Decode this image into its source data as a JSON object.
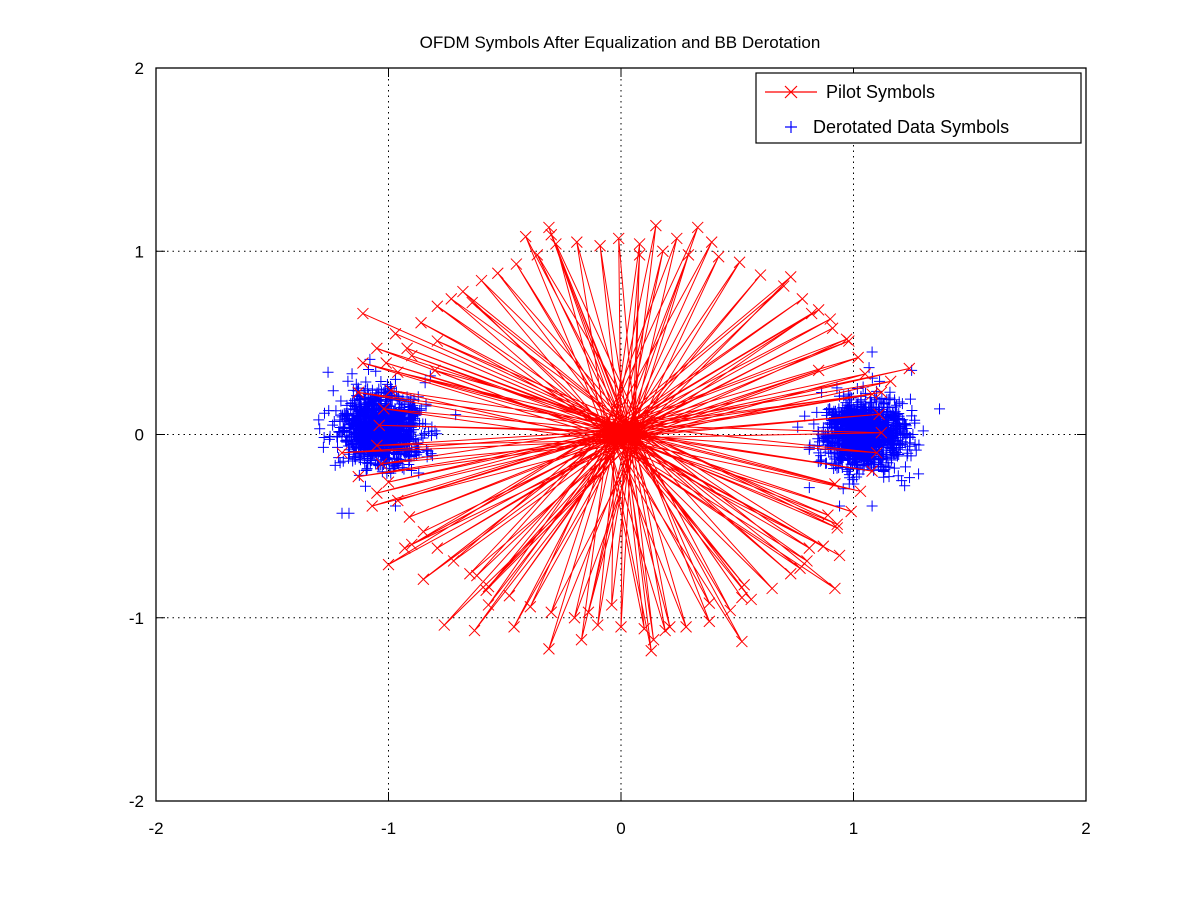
{
  "chart_data": {
    "type": "scatter",
    "title": "OFDM Symbols After Equalization and BB Derotation",
    "xlabel": "",
    "ylabel": "",
    "xlim": [
      -2,
      2
    ],
    "ylim": [
      -2,
      2
    ],
    "xticks": [
      -2,
      -1,
      0,
      1,
      2
    ],
    "yticks": [
      -2,
      -1,
      0,
      1,
      2
    ],
    "x_tick_labels": [
      "-2",
      "-1",
      "0",
      "1",
      "2"
    ],
    "y_tick_labels": [
      "-2",
      "-1",
      "0",
      "1",
      "2"
    ],
    "grid": true,
    "grid_style": "dotted",
    "legend_position": "top-right",
    "series": [
      {
        "name": "Pilot Symbols",
        "kind": "line-with-x-markers",
        "color": "#ff0000",
        "marker": "x",
        "points": [
          [
            -1.11,
            0.66
          ],
          [
            0.03,
            0.02
          ],
          [
            -0.92,
            0.47
          ],
          [
            -0.05,
            0.05
          ],
          [
            -0.97,
            0.55
          ],
          [
            0.12,
            -0.04
          ],
          [
            -0.86,
            0.61
          ],
          [
            0.02,
            -0.01
          ],
          [
            -0.79,
            0.7
          ],
          [
            -0.08,
            0.02
          ],
          [
            -0.73,
            0.74
          ],
          [
            0.05,
            0.03
          ],
          [
            -0.68,
            0.78
          ],
          [
            -0.02,
            -0.04
          ],
          [
            -0.6,
            0.84
          ],
          [
            0.07,
            0.01
          ],
          [
            -0.53,
            0.88
          ],
          [
            -0.04,
            0.06
          ],
          [
            -0.45,
            0.93
          ],
          [
            0.02,
            -0.02
          ],
          [
            -0.36,
            0.98
          ],
          [
            0.09,
            0.03
          ],
          [
            -0.28,
            1.04
          ],
          [
            -0.06,
            0.0
          ],
          [
            -0.19,
            1.05
          ],
          [
            0.03,
            0.05
          ],
          [
            -0.09,
            1.03
          ],
          [
            0.0,
            -0.03
          ],
          [
            -0.01,
            1.07
          ],
          [
            0.06,
            0.02
          ],
          [
            0.08,
            1.04
          ],
          [
            -0.03,
            0.04
          ],
          [
            0.15,
            1.14
          ],
          [
            0.04,
            -0.02
          ],
          [
            0.24,
            1.07
          ],
          [
            -0.07,
            0.03
          ],
          [
            0.33,
            1.13
          ],
          [
            0.02,
            0.0
          ],
          [
            0.42,
            0.97
          ],
          [
            0.08,
            0.04
          ],
          [
            0.51,
            0.94
          ],
          [
            -0.02,
            -0.05
          ],
          [
            0.6,
            0.87
          ],
          [
            0.05,
            0.02
          ],
          [
            0.7,
            0.81
          ],
          [
            -0.05,
            0.01
          ],
          [
            0.78,
            0.74
          ],
          [
            0.03,
            0.06
          ],
          [
            0.85,
            0.68
          ],
          [
            0.0,
            -0.01
          ],
          [
            0.91,
            0.58
          ],
          [
            0.07,
            0.03
          ],
          [
            0.98,
            0.51
          ],
          [
            -0.04,
            0.02
          ],
          [
            1.02,
            0.42
          ],
          [
            0.04,
            -0.03
          ],
          [
            1.05,
            0.33
          ],
          [
            -0.01,
            0.04
          ],
          [
            1.08,
            0.22
          ],
          [
            0.06,
            0.0
          ],
          [
            1.11,
            0.11
          ],
          [
            -0.03,
            -0.02
          ],
          [
            1.12,
            0.01
          ],
          [
            0.02,
            0.05
          ],
          [
            1.1,
            -0.1
          ],
          [
            0.09,
            -0.01
          ],
          [
            1.08,
            -0.2
          ],
          [
            -0.06,
            0.03
          ],
          [
            1.03,
            -0.31
          ],
          [
            0.03,
            -0.04
          ],
          [
            0.99,
            -0.42
          ],
          [
            -0.02,
            0.01
          ],
          [
            0.93,
            -0.51
          ],
          [
            0.05,
            0.04
          ],
          [
            0.87,
            -0.61
          ],
          [
            -0.04,
            -0.03
          ],
          [
            0.8,
            -0.69
          ],
          [
            0.01,
            0.02
          ],
          [
            0.73,
            -0.76
          ],
          [
            0.07,
            -0.02
          ],
          [
            0.65,
            -0.84
          ],
          [
            -0.05,
            0.04
          ],
          [
            0.56,
            -0.9
          ],
          [
            0.02,
            0.0
          ],
          [
            0.47,
            -0.96
          ],
          [
            0.06,
            0.03
          ],
          [
            0.38,
            -1.02
          ],
          [
            -0.03,
            -0.05
          ],
          [
            0.28,
            -1.05
          ],
          [
            0.04,
            0.01
          ],
          [
            0.19,
            -1.07
          ],
          [
            -0.07,
            0.02
          ],
          [
            0.1,
            -1.06
          ],
          [
            0.01,
            -0.02
          ],
          [
            0.0,
            -1.05
          ],
          [
            0.05,
            0.05
          ],
          [
            -0.1,
            -1.04
          ],
          [
            -0.02,
            0.0
          ],
          [
            -0.2,
            -1.0
          ],
          [
            0.08,
            -0.03
          ],
          [
            -0.3,
            -0.97
          ],
          [
            -0.04,
            0.03
          ],
          [
            -0.39,
            -0.94
          ],
          [
            0.03,
            0.02
          ],
          [
            -0.48,
            -0.88
          ],
          [
            -0.01,
            -0.04
          ],
          [
            -0.57,
            -0.83
          ],
          [
            0.06,
            0.01
          ],
          [
            -0.65,
            -0.76
          ],
          [
            -0.05,
            0.05
          ],
          [
            -0.72,
            -0.69
          ],
          [
            0.02,
            -0.01
          ],
          [
            -0.79,
            -0.62
          ],
          [
            0.07,
            0.04
          ],
          [
            -0.85,
            -0.53
          ],
          [
            -0.03,
            -0.02
          ],
          [
            -0.91,
            -0.45
          ],
          [
            0.04,
            0.03
          ],
          [
            -0.96,
            -0.36
          ],
          [
            -0.06,
            0.0
          ],
          [
            -1.0,
            -0.26
          ],
          [
            0.01,
            0.04
          ],
          [
            -1.03,
            -0.16
          ],
          [
            0.05,
            -0.03
          ],
          [
            -1.05,
            -0.06
          ],
          [
            -0.02,
            0.02
          ],
          [
            -1.04,
            0.05
          ],
          [
            0.08,
            0.01
          ],
          [
            -1.02,
            0.14
          ],
          [
            -0.04,
            -0.04
          ],
          [
            -0.99,
            0.24
          ],
          [
            0.02,
            0.05
          ],
          [
            -0.96,
            0.34
          ],
          [
            0.06,
            -0.02
          ],
          [
            -0.9,
            0.43
          ],
          [
            -0.01,
            0.03
          ],
          [
            0.18,
            1.0
          ],
          [
            0.02,
            0.01
          ],
          [
            -0.3,
            1.09
          ],
          [
            0.05,
            -0.02
          ],
          [
            0.82,
            0.66
          ],
          [
            -0.03,
            0.02
          ],
          [
            0.9,
            0.63
          ],
          [
            0.06,
            0.04
          ],
          [
            1.24,
            0.36
          ],
          [
            -0.04,
            -0.01
          ],
          [
            1.12,
            0.23
          ],
          [
            0.03,
            0.03
          ],
          [
            0.89,
            -0.44
          ],
          [
            -0.02,
            0.0
          ],
          [
            0.93,
            -0.49
          ],
          [
            0.08,
            0.02
          ],
          [
            0.92,
            -0.84
          ],
          [
            -0.05,
            -0.03
          ],
          [
            0.77,
            -0.73
          ],
          [
            0.01,
            0.04
          ],
          [
            0.52,
            -0.89
          ],
          [
            0.04,
            -0.01
          ],
          [
            0.52,
            -1.13
          ],
          [
            -0.06,
            0.02
          ],
          [
            0.13,
            -1.18
          ],
          [
            0.02,
            -0.03
          ],
          [
            -0.14,
            -0.97
          ],
          [
            0.07,
            0.03
          ],
          [
            -0.31,
            -1.17
          ],
          [
            -0.03,
            0.01
          ],
          [
            -0.58,
            -0.85
          ],
          [
            0.05,
            -0.04
          ],
          [
            -0.76,
            -1.04
          ],
          [
            -0.01,
            0.02
          ],
          [
            -0.63,
            -1.07
          ],
          [
            0.03,
            0.0
          ],
          [
            -1.0,
            -0.71
          ],
          [
            -0.04,
            0.05
          ],
          [
            -0.9,
            -0.6
          ],
          [
            0.06,
            -0.02
          ],
          [
            -1.07,
            -0.39
          ],
          [
            0.0,
            0.03
          ],
          [
            -1.05,
            -0.32
          ],
          [
            0.05,
            0.01
          ],
          [
            -1.11,
            0.39
          ],
          [
            -0.02,
            -0.03
          ],
          [
            -1.05,
            0.47
          ],
          [
            0.04,
            0.02
          ],
          [
            -0.79,
            0.51
          ],
          [
            0.08,
            0.04
          ],
          [
            -0.8,
            0.35
          ],
          [
            -0.06,
            -0.01
          ],
          [
            -0.41,
            1.08
          ],
          [
            0.03,
            0.02
          ],
          [
            -0.31,
            1.13
          ],
          [
            0.01,
            -0.02
          ],
          [
            0.39,
            1.05
          ],
          [
            -0.05,
            0.03
          ],
          [
            0.73,
            0.86
          ],
          [
            0.07,
            0.0
          ],
          [
            0.97,
            0.52
          ],
          [
            -0.02,
            0.04
          ],
          [
            1.16,
            0.29
          ],
          [
            0.03,
            -0.03
          ],
          [
            0.94,
            -0.66
          ],
          [
            -0.04,
            0.01
          ],
          [
            0.81,
            -0.62
          ],
          [
            0.06,
            0.02
          ],
          [
            0.38,
            -0.92
          ],
          [
            0.0,
            -0.04
          ],
          [
            0.21,
            -1.05
          ],
          [
            0.05,
            0.03
          ],
          [
            -0.04,
            -0.93
          ],
          [
            -0.03,
            0.0
          ],
          [
            -0.46,
            -1.05
          ],
          [
            0.02,
            0.02
          ],
          [
            -0.57,
            -0.93
          ],
          [
            -0.07,
            -0.02
          ],
          [
            -0.85,
            -0.79
          ],
          [
            0.04,
            0.04
          ],
          [
            -0.93,
            -0.62
          ],
          [
            -0.01,
            0.01
          ],
          [
            -1.2,
            -0.1
          ],
          [
            0.06,
            -0.03
          ],
          [
            -1.01,
            0.39
          ],
          [
            -0.04,
            0.02
          ],
          [
            -0.64,
            0.72
          ],
          [
            0.02,
            0.05
          ],
          [
            0.08,
            0.98
          ],
          [
            0.05,
            0.0
          ],
          [
            0.29,
            0.98
          ],
          [
            -0.02,
            -0.04
          ],
          [
            0.85,
            0.35
          ],
          [
            0.07,
            0.02
          ],
          [
            0.92,
            -0.27
          ],
          [
            -0.03,
            0.03
          ],
          [
            0.53,
            -0.82
          ],
          [
            0.01,
            0.0
          ],
          [
            0.14,
            -1.12
          ],
          [
            0.04,
            -0.02
          ],
          [
            -0.17,
            -1.12
          ],
          [
            -0.05,
            0.04
          ],
          [
            -0.62,
            -0.77
          ],
          [
            0.03,
            0.01
          ],
          [
            -1.13,
            -0.23
          ],
          [
            0.0,
            -0.03
          ],
          [
            -1.13,
            0.23
          ],
          [
            0.06,
            0.02
          ]
        ]
      },
      {
        "name": "Derotated Data Symbols",
        "kind": "scatter-plus-markers",
        "color": "#0000ff",
        "marker": "+",
        "clusters": [
          {
            "center": [
              -1.03,
              0.03
            ],
            "spread": [
              0.085,
              0.095
            ],
            "count": 1150,
            "seed": 13
          },
          {
            "center": [
              1.04,
              0.0
            ],
            "spread": [
              0.085,
              0.09
            ],
            "count": 1150,
            "seed": 29
          }
        ],
        "outliers": [
          [
            -1.26,
            0.34
          ],
          [
            -1.28,
            -0.07
          ],
          [
            -1.2,
            -0.43
          ],
          [
            -1.17,
            -0.43
          ],
          [
            -1.08,
            0.41
          ],
          [
            -0.82,
            0.32
          ],
          [
            -0.87,
            -0.21
          ],
          [
            -0.97,
            -0.39
          ],
          [
            1.37,
            0.14
          ],
          [
            1.25,
            0.35
          ],
          [
            1.08,
            0.45
          ],
          [
            1.22,
            -0.28
          ],
          [
            0.94,
            -0.39
          ],
          [
            1.08,
            -0.39
          ],
          [
            0.79,
            0.1
          ],
          [
            0.81,
            -0.29
          ],
          [
            -1.3,
            0.08
          ],
          [
            1.3,
            0.02
          ],
          [
            -0.8,
            0.02
          ],
          [
            0.76,
            0.04
          ]
        ]
      }
    ]
  }
}
